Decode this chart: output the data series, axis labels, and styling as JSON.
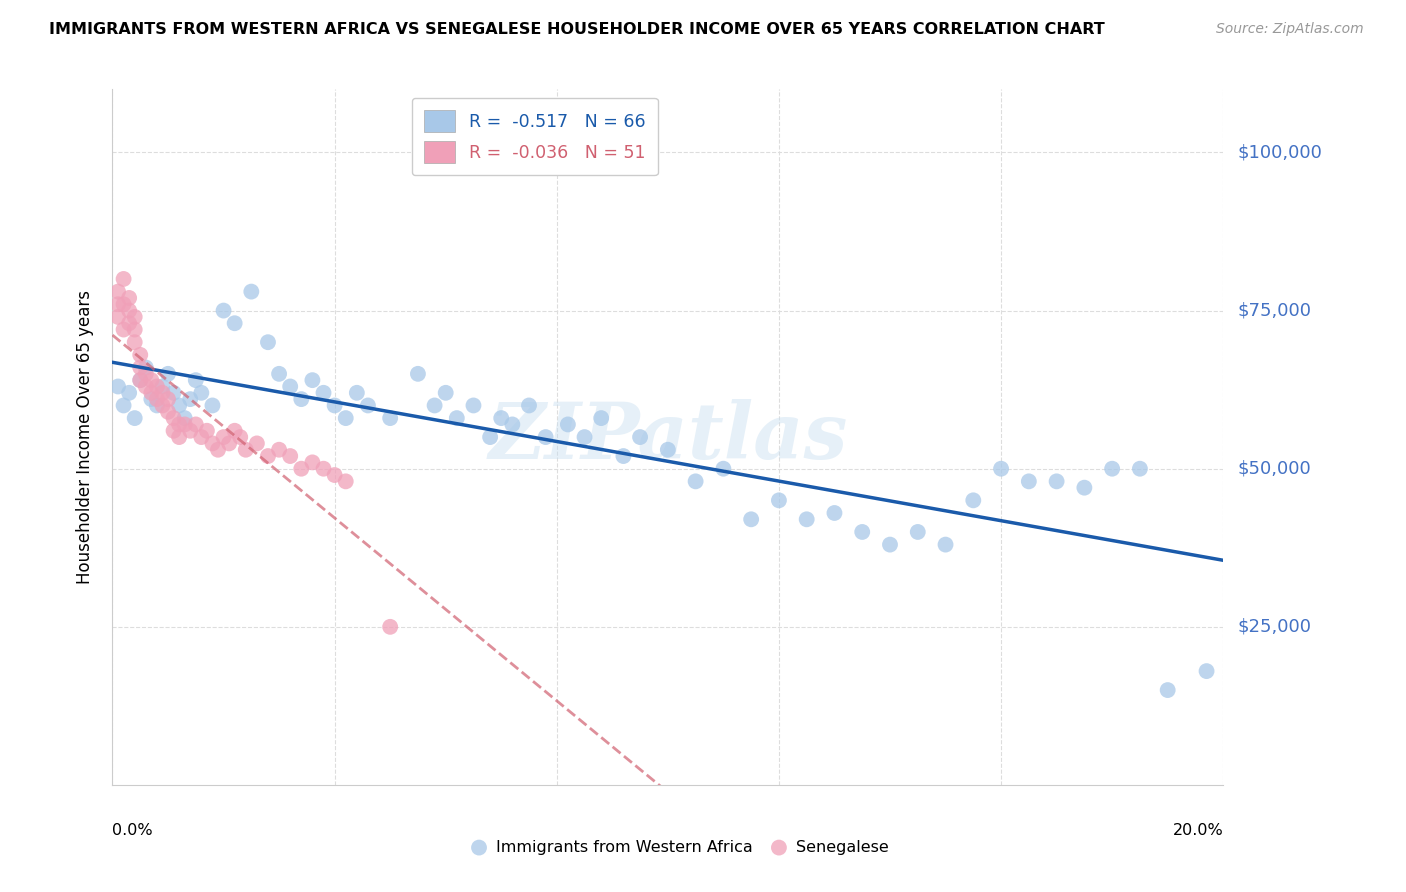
{
  "title": "IMMIGRANTS FROM WESTERN AFRICA VS SENEGALESE HOUSEHOLDER INCOME OVER 65 YEARS CORRELATION CHART",
  "source": "Source: ZipAtlas.com",
  "ylabel": "Householder Income Over 65 years",
  "y_ticks": [
    25000,
    50000,
    75000,
    100000
  ],
  "y_tick_labels": [
    "$25,000",
    "$50,000",
    "$75,000",
    "$100,000"
  ],
  "xlim": [
    0.0,
    0.2
  ],
  "ylim": [
    0,
    110000
  ],
  "blue_color": "#a8c8e8",
  "pink_color": "#f0a0b8",
  "blue_line_color": "#1a5aaa",
  "pink_line_color": "#d06070",
  "watermark": "ZIPatlas",
  "legend_R_blue": "-0.517",
  "legend_N_blue": "66",
  "legend_R_pink": "-0.036",
  "legend_N_pink": "51",
  "blue_scatter_x": [
    0.001,
    0.002,
    0.003,
    0.004,
    0.005,
    0.006,
    0.007,
    0.008,
    0.009,
    0.01,
    0.011,
    0.012,
    0.013,
    0.014,
    0.015,
    0.016,
    0.018,
    0.02,
    0.022,
    0.025,
    0.028,
    0.03,
    0.032,
    0.034,
    0.036,
    0.038,
    0.04,
    0.042,
    0.044,
    0.046,
    0.05,
    0.055,
    0.058,
    0.06,
    0.062,
    0.065,
    0.068,
    0.07,
    0.072,
    0.075,
    0.078,
    0.082,
    0.085,
    0.088,
    0.092,
    0.095,
    0.1,
    0.105,
    0.11,
    0.115,
    0.12,
    0.125,
    0.13,
    0.135,
    0.14,
    0.145,
    0.15,
    0.155,
    0.16,
    0.165,
    0.17,
    0.175,
    0.18,
    0.185,
    0.19,
    0.197
  ],
  "blue_scatter_y": [
    63000,
    60000,
    62000,
    58000,
    64000,
    66000,
    61000,
    60000,
    63000,
    65000,
    62000,
    60000,
    58000,
    61000,
    64000,
    62000,
    60000,
    75000,
    73000,
    78000,
    70000,
    65000,
    63000,
    61000,
    64000,
    62000,
    60000,
    58000,
    62000,
    60000,
    58000,
    65000,
    60000,
    62000,
    58000,
    60000,
    55000,
    58000,
    57000,
    60000,
    55000,
    57000,
    55000,
    58000,
    52000,
    55000,
    53000,
    48000,
    50000,
    42000,
    45000,
    42000,
    43000,
    40000,
    38000,
    40000,
    38000,
    45000,
    50000,
    48000,
    48000,
    47000,
    50000,
    50000,
    15000,
    18000
  ],
  "pink_scatter_x": [
    0.001,
    0.001,
    0.001,
    0.002,
    0.002,
    0.002,
    0.003,
    0.003,
    0.003,
    0.004,
    0.004,
    0.004,
    0.005,
    0.005,
    0.005,
    0.006,
    0.006,
    0.007,
    0.007,
    0.008,
    0.008,
    0.009,
    0.009,
    0.01,
    0.01,
    0.011,
    0.011,
    0.012,
    0.012,
    0.013,
    0.014,
    0.015,
    0.016,
    0.017,
    0.018,
    0.019,
    0.02,
    0.021,
    0.022,
    0.023,
    0.024,
    0.026,
    0.028,
    0.03,
    0.032,
    0.034,
    0.036,
    0.038,
    0.04,
    0.042,
    0.05
  ],
  "pink_scatter_y": [
    78000,
    76000,
    74000,
    80000,
    76000,
    72000,
    77000,
    75000,
    73000,
    74000,
    72000,
    70000,
    68000,
    66000,
    64000,
    65000,
    63000,
    64000,
    62000,
    63000,
    61000,
    62000,
    60000,
    61000,
    59000,
    58000,
    56000,
    57000,
    55000,
    57000,
    56000,
    57000,
    55000,
    56000,
    54000,
    53000,
    55000,
    54000,
    56000,
    55000,
    53000,
    54000,
    52000,
    53000,
    52000,
    50000,
    51000,
    50000,
    49000,
    48000,
    25000
  ]
}
